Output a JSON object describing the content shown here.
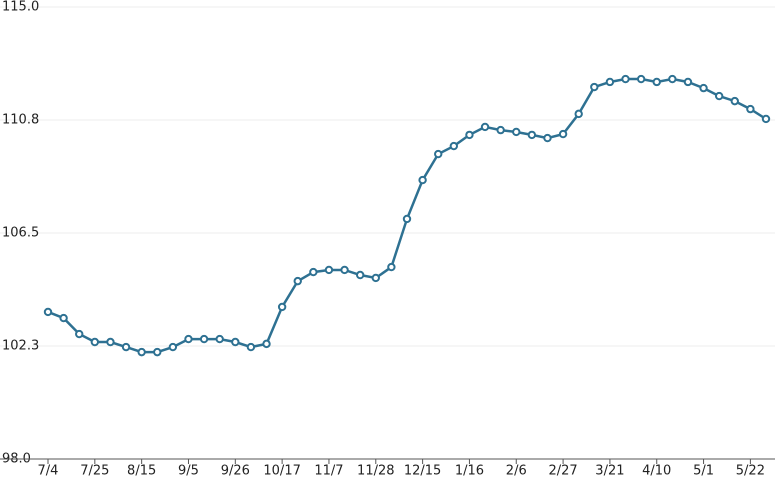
{
  "chart_data": {
    "type": "line",
    "categories": [
      "7/4",
      null,
      null,
      "7/25",
      null,
      null,
      "8/15",
      null,
      null,
      "9/5",
      null,
      null,
      "9/26",
      null,
      null,
      "10/17",
      null,
      null,
      "11/7",
      null,
      null,
      "11/28",
      null,
      null,
      "12/15",
      null,
      null,
      "1/16",
      null,
      null,
      "2/6",
      null,
      null,
      "2/27",
      null,
      null,
      "3/21",
      null,
      null,
      "4/10",
      null,
      null,
      "5/1",
      null,
      null,
      "5/22",
      null
    ],
    "series": [
      {
        "color": "#2e7192",
        "values": [
          103.53,
          103.3,
          102.7,
          102.4,
          102.4,
          102.21,
          102.02,
          102.02,
          102.21,
          102.51,
          102.51,
          102.51,
          102.4,
          102.21,
          102.33,
          103.72,
          104.69,
          105.03,
          105.11,
          105.11,
          104.92,
          104.81,
          105.22,
          107.03,
          108.49,
          109.47,
          109.77,
          110.19,
          110.49,
          110.37,
          110.3,
          110.19,
          110.07,
          110.22,
          110.98,
          111.99,
          112.18,
          112.29,
          112.29,
          112.18,
          112.29,
          112.18,
          111.95,
          111.65,
          111.46,
          111.16,
          110.79
        ]
      }
    ],
    "ylim": [
      98,
      115
    ],
    "yticks": [
      {
        "value": 98,
        "label": "98.0"
      },
      {
        "value": 102.25,
        "label": "102.3"
      },
      {
        "value": 106.5,
        "label": "106.5"
      },
      {
        "value": 110.75,
        "label": "110.8"
      },
      {
        "value": 115,
        "label": "115.0"
      }
    ],
    "grid": true
  }
}
